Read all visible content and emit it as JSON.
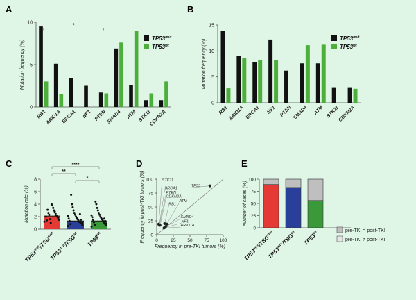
{
  "figure": {
    "background": "#dff5e6",
    "colors": {
      "mut": "#111111",
      "wt": "#4caf3a",
      "red": "#e53935",
      "blue": "#2a3f9a",
      "green": "#3a9a3a",
      "gray": "#bfbfbf",
      "axis": "#555555"
    }
  },
  "chart_data": [
    {
      "panel": "A",
      "type": "bar",
      "ylabel": "Mutation frequency (%)",
      "ylim": [
        0,
        10
      ],
      "yticks": [
        0,
        5,
        10
      ],
      "categories": [
        "RB1",
        "ARID1A",
        "BRCA1",
        "NF1",
        "PTEN",
        "SMAD4",
        "ATM",
        "STK11",
        "CDKN2A"
      ],
      "series": [
        {
          "name": "TP53mut",
          "legend_base": "TP53",
          "legend_sup": "mut",
          "values": [
            9.5,
            5.1,
            3.4,
            2.5,
            1.7,
            6.9,
            2.6,
            0.8,
            0.8
          ]
        },
        {
          "name": "TP53wt",
          "legend_base": "TP53",
          "legend_sup": "wt",
          "values": [
            3.0,
            1.5,
            0,
            0,
            1.6,
            7.6,
            9.0,
            1.6,
            3.0
          ]
        }
      ],
      "annotation": "*"
    },
    {
      "panel": "B",
      "type": "bar",
      "ylabel": "Mutation frequency (%)",
      "ylim": [
        0,
        15
      ],
      "yticks": [
        0,
        5,
        10,
        15
      ],
      "categories": [
        "RB1",
        "ARID1A",
        "BRCA1",
        "NF1",
        "PTEN",
        "SMAD4",
        "ATM",
        "STK11",
        "CDKN2A"
      ],
      "series": [
        {
          "name": "TP53mut",
          "legend_base": "TP53",
          "legend_sup": "mut",
          "values": [
            13.8,
            9.1,
            7.9,
            12.2,
            6.2,
            7.6,
            7.6,
            3.0,
            3.0
          ]
        },
        {
          "name": "TP53wt",
          "legend_base": "TP53",
          "legend_sup": "wt",
          "values": [
            2.8,
            8.6,
            8.2,
            8.3,
            0,
            11.1,
            11.2,
            0,
            2.7
          ]
        }
      ]
    },
    {
      "panel": "C",
      "type": "bar",
      "ylabel": "Mutation rate (%)",
      "ylim": [
        0,
        8
      ],
      "yticks": [
        0,
        2,
        4,
        6,
        8
      ],
      "groups": [
        {
          "label_base": "TP53",
          "label_sup": "mut",
          "label_rest": "/TSG",
          "label_rest_sup": "mut",
          "value": 2.1,
          "color": "red",
          "points": [
            1.2,
            1.5,
            1.8,
            2.0,
            2.2,
            2.5,
            2.8,
            3.0,
            3.4,
            3.8,
            4.0,
            1.0,
            1.6,
            2.3,
            2.6,
            3.1,
            1.4,
            2.0
          ]
        },
        {
          "label_base": "TP53",
          "label_sup": "mut",
          "label_rest": "/TSG",
          "label_rest_sup": "wt",
          "value": 1.3,
          "color": "blue",
          "points": [
            0.5,
            0.7,
            0.9,
            1.0,
            1.1,
            1.2,
            1.4,
            1.6,
            1.8,
            2.0,
            2.3,
            2.6,
            3.0,
            3.5,
            4.0,
            5.5,
            0.8,
            1.3,
            1.7,
            2.1,
            0.6,
            1.0,
            1.5,
            2.4
          ]
        },
        {
          "label_base": "TP53",
          "label_sup": "wt",
          "label_rest": "",
          "label_rest_sup": "",
          "value": 1.3,
          "color": "green",
          "points": [
            0.4,
            0.6,
            0.8,
            1.0,
            1.2,
            1.4,
            1.6,
            1.8,
            2.0,
            2.3,
            2.6,
            3.0,
            3.4,
            4.0,
            4.4,
            0.7,
            1.1,
            1.5,
            1.9,
            2.2,
            0.9,
            1.3,
            1.7
          ]
        }
      ],
      "annotations": [
        {
          "from": 0,
          "to": 2,
          "text": "****"
        },
        {
          "from": 0,
          "to": 1,
          "text": "**"
        },
        {
          "from": 1,
          "to": 2,
          "text": "*"
        }
      ]
    },
    {
      "panel": "D",
      "type": "scatter",
      "xlabel": "Frequency in pre-TKI tumors (%)",
      "ylabel": "Frequency in post-TKI tumors (%)",
      "xlim": [
        0,
        100
      ],
      "ylim": [
        0,
        100
      ],
      "xticks": [
        0,
        25,
        50,
        75,
        100
      ],
      "yticks": [
        0,
        25,
        50,
        75,
        100
      ],
      "points": [
        {
          "label": "TP53",
          "x": 80,
          "y": 88
        },
        {
          "label": "STK11",
          "x": 3,
          "y": 19
        },
        {
          "label": "BRCA1",
          "x": 4,
          "y": 18
        },
        {
          "label": "PTEN",
          "x": 4,
          "y": 17
        },
        {
          "label": "CDKN2A",
          "x": 5,
          "y": 17
        },
        {
          "label": "RB1",
          "x": 12,
          "y": 20
        },
        {
          "label": "ATM",
          "x": 15,
          "y": 19
        },
        {
          "label": "SMAD4",
          "x": 14,
          "y": 15
        },
        {
          "label": "NF1",
          "x": 12,
          "y": 13
        },
        {
          "label": "ARID1A",
          "x": 11,
          "y": 12
        }
      ]
    },
    {
      "panel": "E",
      "type": "bar",
      "stacked": true,
      "ylabel": "Number of cases (%)",
      "ylim": [
        0,
        100
      ],
      "yticks": [
        0,
        25,
        50,
        75,
        100
      ],
      "groups": [
        {
          "label_base": "TP53",
          "label_sup": "mut",
          "label_rest": "/TSG",
          "label_rest_sup": "mut",
          "bottom": 89,
          "color": "red"
        },
        {
          "label_base": "TP53",
          "label_sup": "mut",
          "label_rest": "/TSG",
          "label_rest_sup": "wt",
          "bottom": 83,
          "color": "blue"
        },
        {
          "label_base": "TP53",
          "label_sup": "wt",
          "label_rest": "",
          "label_rest_sup": "",
          "bottom": 56,
          "color": "green"
        }
      ],
      "legend": [
        "pre-TKI = post-TKI",
        "pre-TKI ≠ post-TKI"
      ]
    }
  ]
}
